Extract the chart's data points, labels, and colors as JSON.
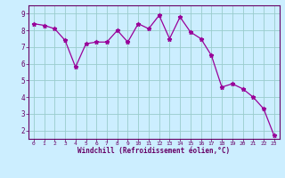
{
  "x": [
    0,
    1,
    2,
    3,
    4,
    5,
    6,
    7,
    8,
    9,
    10,
    11,
    12,
    13,
    14,
    15,
    16,
    17,
    18,
    19,
    20,
    21,
    22,
    23
  ],
  "y": [
    8.4,
    8.3,
    8.1,
    7.4,
    5.8,
    7.2,
    7.3,
    7.3,
    8.0,
    7.3,
    8.4,
    8.1,
    8.9,
    7.5,
    8.8,
    7.9,
    7.5,
    6.5,
    4.6,
    4.8,
    4.5,
    4.0,
    3.3,
    1.7
  ],
  "line_color": "#990099",
  "marker": "*",
  "bg_color": "#cceeff",
  "grid_color": "#99cccc",
  "xlabel": "Windchill (Refroidissement éolien,°C)",
  "xlim": [
    -0.5,
    23.5
  ],
  "ylim": [
    1.5,
    9.5
  ],
  "yticks": [
    2,
    3,
    4,
    5,
    6,
    7,
    8,
    9
  ],
  "xticks": [
    0,
    1,
    2,
    3,
    4,
    5,
    6,
    7,
    8,
    9,
    10,
    11,
    12,
    13,
    14,
    15,
    16,
    17,
    18,
    19,
    20,
    21,
    22,
    23
  ],
  "axis_color": "#660066",
  "tick_color": "#660066",
  "label_color": "#660066"
}
